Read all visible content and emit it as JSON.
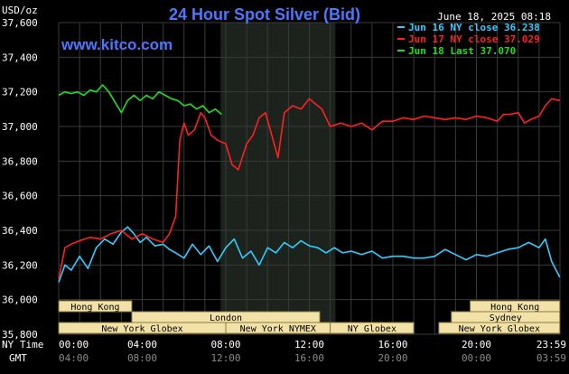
{
  "chart_data": {
    "type": "line",
    "title": "24 Hour Spot Silver (Bid)",
    "ylabel": "USD/oz",
    "timestamp": "June 18, 2025 08:18",
    "watermark": "www.kitco.com",
    "ylim": [
      35.8,
      37.6
    ],
    "yticks": [
      "37,600",
      "37,400",
      "37,200",
      "37,000",
      "36,800",
      "36,600",
      "36,400",
      "36,200",
      "36,000",
      "35,800"
    ],
    "xlim": [
      0,
      24
    ],
    "xrow1_label": "NY Time",
    "xrow2_label": "GMT",
    "xticks_ny": [
      "00:00",
      "04:00",
      "08:00",
      "12:00",
      "16:00",
      "20:00",
      "23:59"
    ],
    "xticks_gmt": [
      "04:00",
      "08:00",
      "12:00",
      "16:00",
      "20:00",
      "00:00",
      "03:59"
    ],
    "highlight_window": [
      7.75,
      13.25
    ],
    "grid": true,
    "legend_position": "top-right",
    "series": [
      {
        "name": "Jun 16 NY close 36.238",
        "color": "#33ccff",
        "x": [
          0,
          0.3,
          0.6,
          1.0,
          1.4,
          1.8,
          2.2,
          2.6,
          3.0,
          3.3,
          3.6,
          3.9,
          4.2,
          4.6,
          5.0,
          5.3,
          5.6,
          6.0,
          6.4,
          6.8,
          7.2,
          7.6,
          8.0,
          8.4,
          8.8,
          9.2,
          9.6,
          10.0,
          10.4,
          10.8,
          11.2,
          11.6,
          12.0,
          12.4,
          12.8,
          13.2,
          13.6,
          14.0,
          14.5,
          15.0,
          15.5,
          16.0,
          16.5,
          17.0,
          17.5,
          18.0,
          18.5,
          19.0,
          19.5,
          20.0,
          20.5,
          21.0,
          21.5,
          22.0,
          22.5,
          23.0,
          23.3,
          23.6,
          23.99
        ],
        "values": [
          36.1,
          36.2,
          36.17,
          36.25,
          36.18,
          36.3,
          36.35,
          36.32,
          36.39,
          36.42,
          36.38,
          36.33,
          36.36,
          36.31,
          36.32,
          36.29,
          36.27,
          36.24,
          36.32,
          36.26,
          36.31,
          36.22,
          36.3,
          36.35,
          36.24,
          36.28,
          36.2,
          36.3,
          36.27,
          36.33,
          36.3,
          36.34,
          36.31,
          36.3,
          36.27,
          36.3,
          36.27,
          36.28,
          36.26,
          36.28,
          36.24,
          36.25,
          36.25,
          36.24,
          36.24,
          36.25,
          36.29,
          36.26,
          36.23,
          36.26,
          36.25,
          36.27,
          36.29,
          36.3,
          36.33,
          36.3,
          36.35,
          36.22,
          36.13
        ]
      },
      {
        "name": "Jun 17 NY close 37.029",
        "color": "#ff2020",
        "x": [
          0,
          0.3,
          0.6,
          1.0,
          1.5,
          2.0,
          2.5,
          3.0,
          3.5,
          4.0,
          4.5,
          5.0,
          5.3,
          5.6,
          5.8,
          6.0,
          6.2,
          6.5,
          6.8,
          7.0,
          7.3,
          7.6,
          8.0,
          8.3,
          8.6,
          9.0,
          9.3,
          9.6,
          9.9,
          10.2,
          10.5,
          10.8,
          11.2,
          11.6,
          12.0,
          12.3,
          12.6,
          13.0,
          13.5,
          14.0,
          14.5,
          15.0,
          15.5,
          16.0,
          16.5,
          17.0,
          17.5,
          18.0,
          18.5,
          19.0,
          19.5,
          20.0,
          20.5,
          21.0,
          21.3,
          21.6,
          22.0,
          22.3,
          22.6,
          23.0,
          23.3,
          23.6,
          23.99
        ],
        "values": [
          36.12,
          36.3,
          36.32,
          36.34,
          36.36,
          36.35,
          36.38,
          36.4,
          36.35,
          36.38,
          36.35,
          36.33,
          36.38,
          36.48,
          36.92,
          37.02,
          36.95,
          36.98,
          37.08,
          37.05,
          36.95,
          36.92,
          36.9,
          36.78,
          36.75,
          36.9,
          36.95,
          37.05,
          37.08,
          36.95,
          36.82,
          37.08,
          37.12,
          37.1,
          37.16,
          37.13,
          37.1,
          37.0,
          37.02,
          37.0,
          37.02,
          36.98,
          37.03,
          37.03,
          37.05,
          37.04,
          37.06,
          37.05,
          37.04,
          37.05,
          37.04,
          37.06,
          37.05,
          37.03,
          37.07,
          37.07,
          37.08,
          37.02,
          37.04,
          37.06,
          37.12,
          37.16,
          37.15
        ]
      },
      {
        "name": "Jun 18 Last 37.070",
        "color": "#22dd22",
        "x": [
          0,
          0.3,
          0.6,
          0.9,
          1.2,
          1.5,
          1.8,
          2.1,
          2.4,
          2.7,
          3.0,
          3.3,
          3.6,
          3.9,
          4.2,
          4.5,
          4.8,
          5.1,
          5.4,
          5.7,
          6.0,
          6.3,
          6.6,
          6.9,
          7.2,
          7.5,
          7.8
        ],
        "values": [
          37.18,
          37.2,
          37.19,
          37.2,
          37.18,
          37.21,
          37.2,
          37.24,
          37.2,
          37.14,
          37.08,
          37.15,
          37.18,
          37.15,
          37.18,
          37.16,
          37.2,
          37.18,
          37.16,
          37.15,
          37.12,
          37.13,
          37.1,
          37.12,
          37.08,
          37.1,
          37.07
        ]
      }
    ]
  },
  "sessions": [
    {
      "label": "Hong Kong",
      "start": 0.0,
      "end": 3.5,
      "row": 1
    },
    {
      "label": "Hong Kong",
      "start": 19.7,
      "end": 23.99,
      "row": 1
    },
    {
      "label": "London",
      "start": 3.5,
      "end": 12.5,
      "row": 2
    },
    {
      "label": "Sydney",
      "start": 18.8,
      "end": 23.99,
      "row": 2
    },
    {
      "label": "New York Globex",
      "start": 0.0,
      "end": 8.0,
      "row": 3
    },
    {
      "label": "New York NYMEX",
      "start": 8.0,
      "end": 13.0,
      "row": 3
    },
    {
      "label": "NY Globex",
      "start": 13.0,
      "end": 17.0,
      "row": 3
    },
    {
      "label": "New York Globex",
      "start": 18.2,
      "end": 23.99,
      "row": 3
    }
  ],
  "colors": {
    "background": "#000000",
    "grid": "#3a3a3a",
    "highlight": "#1c221c",
    "session_fill": "#f2e2a8",
    "session_border": "#8a7a40",
    "title": "#4a78ff"
  }
}
